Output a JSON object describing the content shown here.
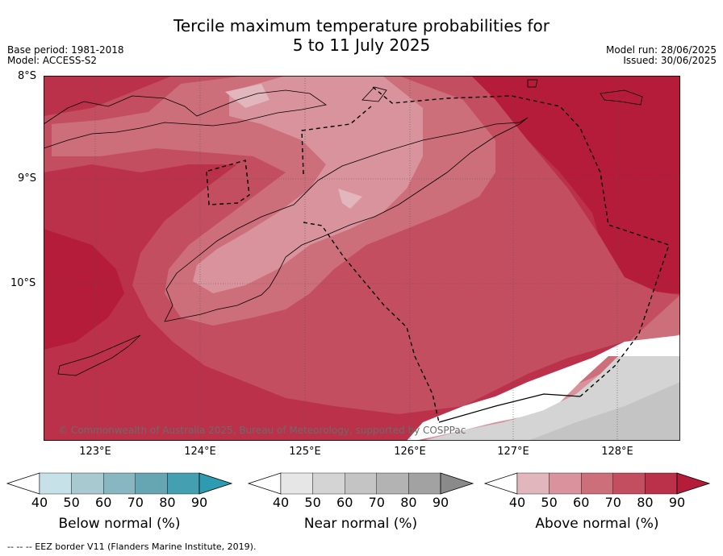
{
  "header": {
    "title_line1": "Tercile maximum temperature probabilities for",
    "title_line2": "5 to 11 July 2025",
    "base_period": "Base period: 1981-2018",
    "model": "Model: ACCESS-S2",
    "model_run": "Model run: 28/06/2025",
    "issued": "Issued: 30/06/2025"
  },
  "map": {
    "lat_labels": [
      "8°S",
      "9°S",
      "10°S"
    ],
    "lon_labels": [
      "123°E",
      "124°E",
      "125°E",
      "126°E",
      "127°E",
      "128°E"
    ],
    "copyright": "© Commonwealth of Australia 2025, Bureau of Meteorology, supported by COSPPac",
    "eez_style": "dashed black",
    "coastline_style": "thin black"
  },
  "colorbars": [
    {
      "name": "below",
      "label": "Below normal (%)",
      "ticks": [
        "40",
        "50",
        "60",
        "70",
        "80",
        "90"
      ],
      "colors": [
        "#c6e2e8",
        "#a7c9cf",
        "#88b7c1",
        "#66a6b3",
        "#44a0b1",
        "#2d9cb0"
      ]
    },
    {
      "name": "near",
      "label": "Near normal (%)",
      "ticks": [
        "40",
        "50",
        "60",
        "70",
        "80",
        "90"
      ],
      "colors": [
        "#e6e6e6",
        "#d4d4d4",
        "#c4c4c4",
        "#b3b3b3",
        "#a2a2a2",
        "#8a8a8a"
      ]
    },
    {
      "name": "above",
      "label": "Above normal (%)",
      "ticks": [
        "40",
        "50",
        "60",
        "70",
        "80",
        "90"
      ],
      "colors": [
        "#e2b6bd",
        "#d9939d",
        "#cd6f7b",
        "#c34e5f",
        "#bb3149",
        "#b51c3a"
      ]
    }
  ],
  "footnote": "--  --  -- EEZ border V11 (Flanders Marine Institute, 2019)."
}
